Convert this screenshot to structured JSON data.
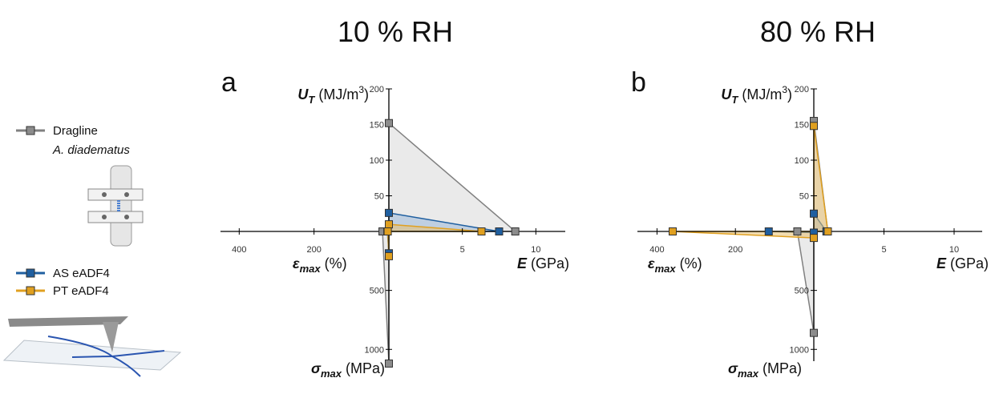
{
  "headers": [
    "10 % RH",
    "80 % RH"
  ],
  "legend_note": "A. diadematus",
  "chart_data": [
    {
      "type": "radar",
      "panel": "a",
      "axes": [
        {
          "direction": "up",
          "symbol": "U",
          "sub": "T",
          "unit": "(MJ/m",
          "unit_sup": "3",
          "unit_end": ")",
          "lim": [
            0,
            200
          ],
          "ticks": [
            50,
            100,
            150,
            200
          ]
        },
        {
          "direction": "right",
          "symbol": "E",
          "sub": "",
          "unit": "(GPa)",
          "unit_sup": "",
          "unit_end": "",
          "lim": [
            0,
            12
          ],
          "ticks": [
            5,
            10
          ]
        },
        {
          "direction": "left",
          "symbol": "ε",
          "sub": "max",
          "unit": "(%)",
          "unit_sup": "",
          "unit_end": "",
          "lim": [
            0,
            450
          ],
          "ticks": [
            200,
            400
          ]
        },
        {
          "direction": "down",
          "symbol": "σ",
          "sub": "max",
          "unit": "(MPa)",
          "unit_sup": "",
          "unit_end": "",
          "lim": [
            0,
            1100
          ],
          "ticks": [
            500,
            1000
          ]
        }
      ],
      "series": [
        {
          "name": "Dragline",
          "color": "#808080",
          "fill": "#d9d9d9",
          "values": [
            152,
            8.6,
            17,
            1120
          ]
        },
        {
          "name": "AS eADF4",
          "color": "#1f5fa0",
          "fill": "#9bb8d8",
          "values": [
            26,
            7.5,
            4,
            185
          ]
        },
        {
          "name": "PT eADF4",
          "color": "#e0a020",
          "fill": "#e8c070",
          "values": [
            10,
            6.3,
            3,
            210
          ]
        }
      ]
    },
    {
      "type": "radar",
      "panel": "b",
      "axes": [
        {
          "direction": "up",
          "symbol": "U",
          "sub": "T",
          "unit": "(MJ/m",
          "unit_sup": "3",
          "unit_end": ")",
          "lim": [
            0,
            200
          ],
          "ticks": [
            50,
            100,
            150,
            200
          ]
        },
        {
          "direction": "right",
          "symbol": "E",
          "sub": "",
          "unit": "(GPa)",
          "unit_sup": "",
          "unit_end": "",
          "lim": [
            0,
            12
          ],
          "ticks": [
            5,
            10
          ]
        },
        {
          "direction": "left",
          "symbol": "ε",
          "sub": "max",
          "unit": "(%)",
          "unit_sup": "",
          "unit_end": "",
          "lim": [
            0,
            450
          ],
          "ticks": [
            200,
            400
          ]
        },
        {
          "direction": "down",
          "symbol": "σ",
          "sub": "max",
          "unit": "(MPa)",
          "unit_sup": "",
          "unit_end": "",
          "lim": [
            0,
            1100
          ],
          "ticks": [
            500,
            1000
          ]
        }
      ],
      "series": [
        {
          "color": "#808080",
          "fill": "#d9d9d9",
          "values": [
            155,
            1.0,
            42,
            860
          ]
        },
        {
          "color": "#1f5fa0",
          "fill": "#9bb8d8",
          "values": [
            25,
            0.9,
            115,
            10
          ]
        },
        {
          "color": "#e0a020",
          "fill": "#e8c070",
          "values": [
            148,
            1.0,
            360,
            55
          ]
        }
      ]
    }
  ]
}
